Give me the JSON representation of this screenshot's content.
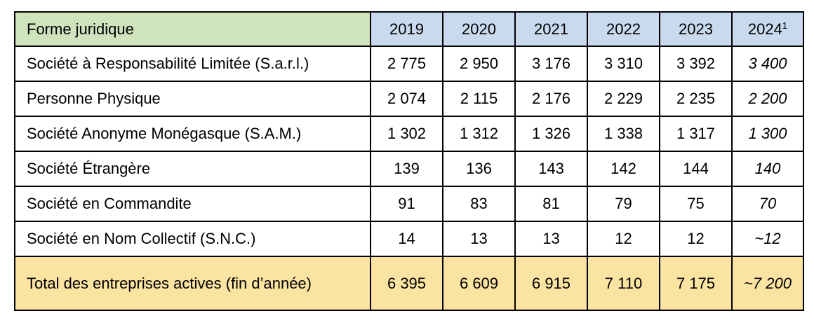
{
  "table": {
    "header": {
      "label": "Forme juridique",
      "years": [
        "2019",
        "2020",
        "2021",
        "2022",
        "2023",
        "2024"
      ],
      "footnote_mark": "1"
    },
    "rows": [
      {
        "label": "Société à Responsabilité Limitée (S.a.r.l.)",
        "values": [
          "2 775",
          "2 950",
          "3 176",
          "3 310",
          "3 392"
        ],
        "estimate": "3 400"
      },
      {
        "label": "Personne Physique",
        "values": [
          "2 074",
          "2 115",
          "2 176",
          "2 229",
          "2 235"
        ],
        "estimate": "2 200"
      },
      {
        "label": "Société Anonyme Monégasque (S.A.M.)",
        "values": [
          "1 302",
          "1 312",
          "1 326",
          "1 338",
          "1 317"
        ],
        "estimate": "1 300"
      },
      {
        "label": "Société Étrangère",
        "values": [
          "139",
          "136",
          "143",
          "142",
          "144"
        ],
        "estimate": "140"
      },
      {
        "label": "Société en Commandite",
        "values": [
          "91",
          "83",
          "81",
          "79",
          "75"
        ],
        "estimate": "70"
      },
      {
        "label": "Société en Nom Collectif (S.N.C.)",
        "values": [
          "14",
          "13",
          "13",
          "12",
          "12"
        ],
        "estimate": "~12"
      }
    ],
    "total": {
      "label": "Total des entreprises actives (fin d’année)",
      "values": [
        "6 395",
        "6 609",
        "6 915",
        "7 110",
        "7 175"
      ],
      "estimate": "~7 200"
    },
    "colors": {
      "header_label_bg": "#cfe3bd",
      "header_year_bg": "#c9daee",
      "total_row_bg": "#fbe3a2"
    }
  }
}
